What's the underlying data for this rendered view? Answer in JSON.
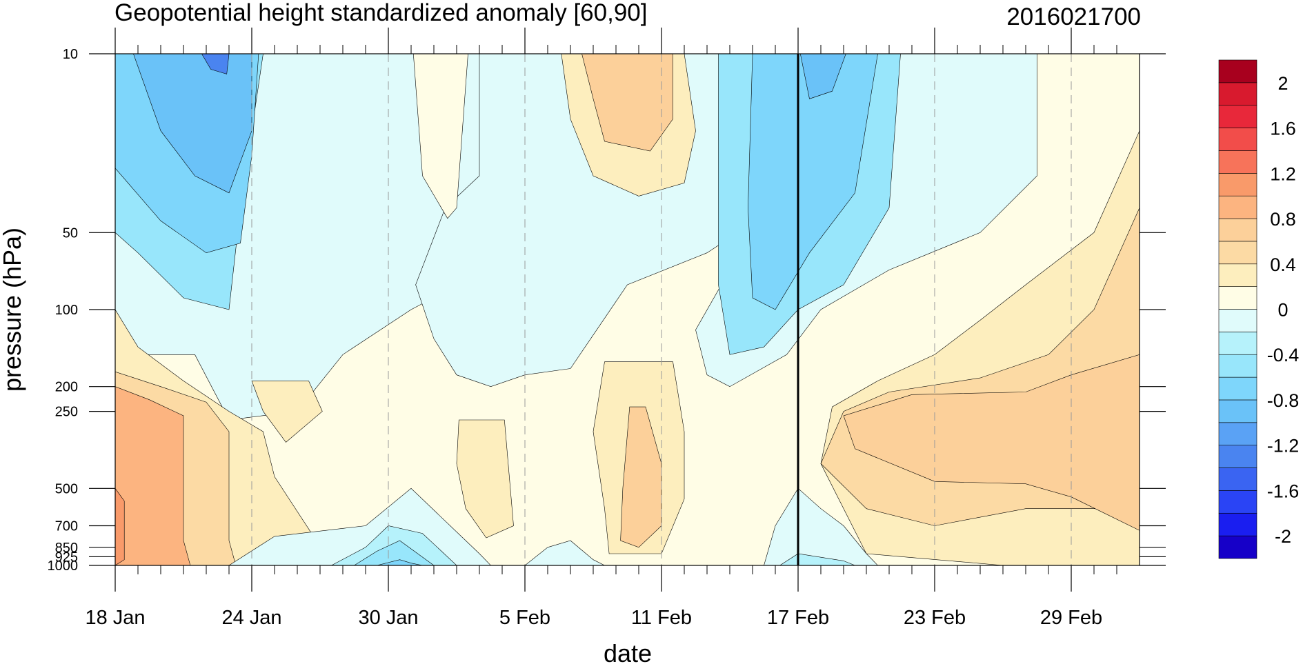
{
  "chart_data": {
    "type": "contour",
    "title": "Geopotential height standardized anomaly [60,90]",
    "date_label": "2016021700",
    "xlabel": "date",
    "ylabel": "pressure (hPa)",
    "x_ticks": [
      "18 Jan",
      "24 Jan",
      "30 Jan",
      "5 Feb",
      "11 Feb",
      "17 Feb",
      "23 Feb",
      "29 Feb"
    ],
    "x_range": [
      "2016-01-18",
      "2016-03-03"
    ],
    "y_ticks": [
      {
        "label": "10",
        "p": 10
      },
      {
        "label": "50",
        "p": 50
      },
      {
        "label": "100",
        "p": 100
      },
      {
        "label": "200",
        "p": 200
      },
      {
        "label": "250",
        "p": 250
      },
      {
        "label": "500",
        "p": 500
      },
      {
        "label": "700",
        "p": 700
      },
      {
        "label": "850",
        "p": 850
      },
      {
        "label": "925",
        "p": 925
      },
      {
        "label": "1000",
        "p": 1000
      }
    ],
    "y_scale": "log (reversed)",
    "y_range": [
      10,
      1000
    ],
    "marker_date": "17 Feb",
    "colorbar": {
      "labels": [
        "2",
        "1.6",
        "1.2",
        "0.8",
        "0.4",
        "0",
        "-0.4",
        "-0.8",
        "-1.2",
        "-1.6",
        "-2"
      ],
      "levels_min": -2.2,
      "levels_max": 2.2,
      "step": 0.2,
      "colors": [
        "#1600c8",
        "#1a1ef0",
        "#2a44f5",
        "#3a64f2",
        "#4a84f0",
        "#5aa2f5",
        "#6ac2f8",
        "#7ed6fb",
        "#98e6fb",
        "#b6f2fb",
        "#e0fbfb",
        "#fffde6",
        "#fdeebe",
        "#fcdaa4",
        "#fcd09a",
        "#fcb480",
        "#f99a6a",
        "#f7735a",
        "#f24d4a",
        "#e8283a",
        "#d81a2e",
        "#a8001e"
      ]
    },
    "regions": [
      {
        "name": "upper-left-negative",
        "anomaly": -1.0,
        "color": "#6ac2f8"
      },
      {
        "name": "upper-left-core",
        "anomaly": -1.2,
        "color": "#4a84f0"
      },
      {
        "name": "lower-left-positive",
        "anomaly": 1.0,
        "color": "#f99a6a"
      },
      {
        "name": "mid-feb-upper-negative",
        "anomaly": -0.8,
        "color": "#7ed6fb"
      },
      {
        "name": "early-feb-upper-positive",
        "anomaly": 0.6,
        "color": "#fcd09a"
      },
      {
        "name": "mid-feb-lower-positive",
        "anomaly": 0.6,
        "color": "#fcd09a"
      },
      {
        "name": "late-feb-lower-positive",
        "anomaly": 0.6,
        "color": "#fcd09a"
      },
      {
        "name": "end-jan-lower-negative",
        "anomaly": -0.6,
        "color": "#98e6fb"
      }
    ]
  }
}
